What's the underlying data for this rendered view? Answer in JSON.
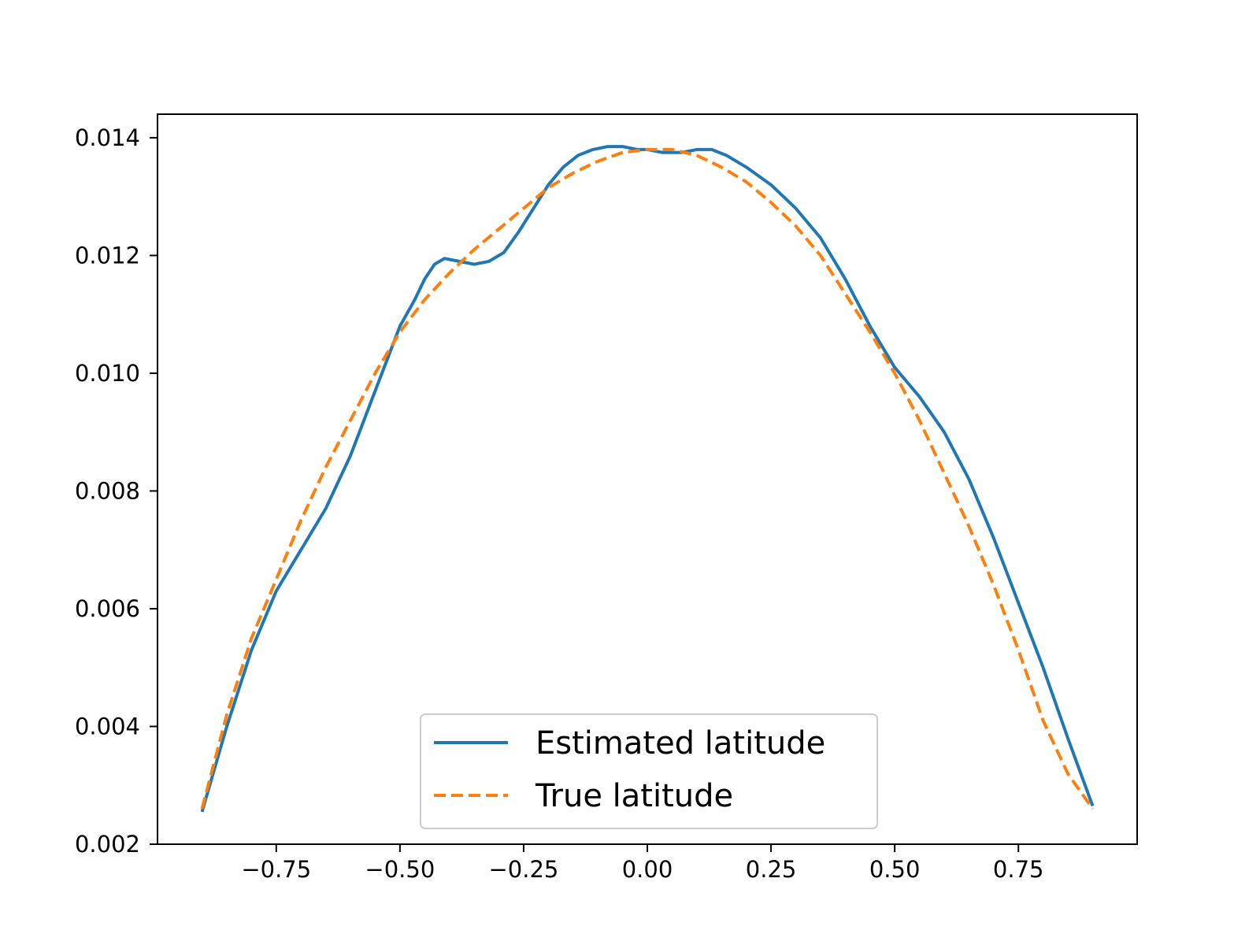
{
  "chart_data": {
    "type": "line",
    "xlim": [
      -0.99,
      0.99
    ],
    "ylim": [
      0.002,
      0.0144
    ],
    "x_ticks": [
      -0.75,
      -0.5,
      -0.25,
      0.0,
      0.25,
      0.5,
      0.75
    ],
    "x_tick_labels": [
      "−0.75",
      "−0.50",
      "−0.25",
      "0.00",
      "0.25",
      "0.50",
      "0.75"
    ],
    "y_ticks": [
      0.002,
      0.004,
      0.006,
      0.008,
      0.01,
      0.012,
      0.014
    ],
    "y_tick_labels": [
      "0.002",
      "0.004",
      "0.006",
      "0.008",
      "0.010",
      "0.012",
      "0.014"
    ],
    "grid": false,
    "legend_position": "lower center",
    "series": [
      {
        "name": "Estimated latitude",
        "color": "#1f77b4",
        "style": "solid",
        "x": [
          -0.9,
          -0.85,
          -0.8,
          -0.75,
          -0.7,
          -0.65,
          -0.6,
          -0.55,
          -0.5,
          -0.47,
          -0.45,
          -0.43,
          -0.41,
          -0.38,
          -0.35,
          -0.32,
          -0.29,
          -0.26,
          -0.23,
          -0.2,
          -0.17,
          -0.14,
          -0.11,
          -0.08,
          -0.05,
          -0.02,
          0.0,
          0.03,
          0.07,
          0.1,
          0.13,
          0.16,
          0.2,
          0.25,
          0.3,
          0.35,
          0.4,
          0.45,
          0.5,
          0.55,
          0.6,
          0.65,
          0.7,
          0.75,
          0.8,
          0.85,
          0.9
        ],
        "y": [
          0.00255,
          0.004,
          0.0053,
          0.0063,
          0.007,
          0.0077,
          0.0086,
          0.0097,
          0.0108,
          0.01125,
          0.0116,
          0.01185,
          0.01195,
          0.0119,
          0.01185,
          0.0119,
          0.01205,
          0.0124,
          0.0128,
          0.0132,
          0.0135,
          0.0137,
          0.0138,
          0.01385,
          0.01385,
          0.0138,
          0.0138,
          0.01375,
          0.01375,
          0.0138,
          0.0138,
          0.0137,
          0.0135,
          0.0132,
          0.0128,
          0.0123,
          0.0116,
          0.0108,
          0.0101,
          0.0096,
          0.009,
          0.0082,
          0.0072,
          0.0061,
          0.005,
          0.0038,
          0.00265
        ]
      },
      {
        "name": "True latitude",
        "color": "#ff7f0e",
        "style": "dashed",
        "x": [
          -0.9,
          -0.85,
          -0.8,
          -0.75,
          -0.7,
          -0.65,
          -0.6,
          -0.55,
          -0.5,
          -0.45,
          -0.4,
          -0.35,
          -0.3,
          -0.25,
          -0.2,
          -0.15,
          -0.1,
          -0.05,
          0.0,
          0.05,
          0.1,
          0.15,
          0.2,
          0.25,
          0.3,
          0.35,
          0.4,
          0.45,
          0.5,
          0.55,
          0.6,
          0.65,
          0.7,
          0.75,
          0.8,
          0.85,
          0.9
        ],
        "y": [
          0.0026,
          0.0042,
          0.0055,
          0.0065,
          0.0075,
          0.0084,
          0.0092,
          0.01,
          0.0107,
          0.01125,
          0.0117,
          0.0121,
          0.01245,
          0.0128,
          0.01315,
          0.0134,
          0.0136,
          0.01375,
          0.0138,
          0.0138,
          0.0137,
          0.0135,
          0.01325,
          0.0129,
          0.0125,
          0.012,
          0.01135,
          0.0107,
          0.01,
          0.0092,
          0.0083,
          0.0074,
          0.0064,
          0.0053,
          0.0041,
          0.0032,
          0.0026
        ]
      }
    ]
  }
}
